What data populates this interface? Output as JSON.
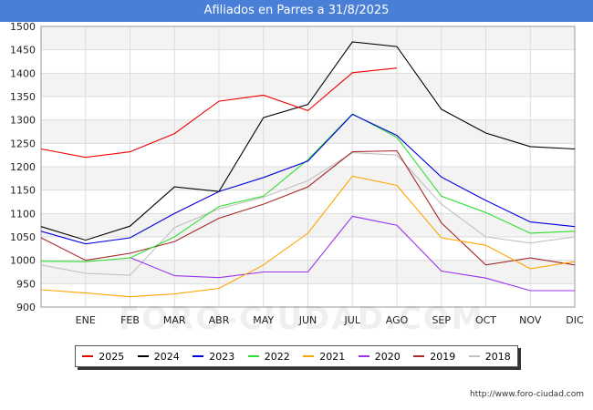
{
  "header": {
    "title": "Afiliados en Parres a 31/8/2025"
  },
  "footer": {
    "url": "http://www.foro-ciudad.com",
    "watermark": "FORO-CIUDAD.COM"
  },
  "chart_data": {
    "type": "line",
    "title": "Afiliados en Parres a 31/8/2025",
    "xlabel": "",
    "ylabel": "",
    "categories": [
      "",
      "ENE",
      "FEB",
      "MAR",
      "ABR",
      "MAY",
      "JUN",
      "JUL",
      "AGO",
      "SEP",
      "OCT",
      "NOV",
      "DIC"
    ],
    "ylim": [
      900,
      1500
    ],
    "yticks": [
      900,
      950,
      1000,
      1050,
      1100,
      1150,
      1200,
      1250,
      1300,
      1350,
      1400,
      1450,
      1500
    ],
    "grid": true,
    "legend_position": "bottom",
    "series": [
      {
        "name": "2018",
        "color": "#c0c0c0",
        "values": [
          990,
          972,
          968,
          1070,
          1110,
          1135,
          1170,
          1230,
          1225,
          1120,
          1050,
          1037,
          1050
        ]
      },
      {
        "name": "2019",
        "color": "#a52a2a",
        "values": [
          1048,
          1000,
          1015,
          1040,
          1090,
          1120,
          1157,
          1232,
          1234,
          1080,
          990,
          1005,
          990
        ]
      },
      {
        "name": "2020",
        "color": "#9933ee",
        "values": [
          null,
          null,
          1006,
          967,
          963,
          975,
          975,
          1094,
          1075,
          977,
          962,
          935,
          935
        ]
      },
      {
        "name": "2021",
        "color": "#ffa500",
        "values": [
          937,
          930,
          922,
          928,
          940,
          990,
          1058,
          1180,
          1160,
          1048,
          1032,
          982,
          997
        ]
      },
      {
        "name": "2022",
        "color": "#33dd33",
        "values": [
          998,
          997,
          1005,
          1050,
          1115,
          1137,
          1215,
          1313,
          1263,
          1137,
          1102,
          1058,
          1062
        ]
      },
      {
        "name": "2023",
        "color": "#0000dd",
        "values": [
          1062,
          1035,
          1048,
          1100,
          1147,
          1177,
          1212,
          1312,
          1267,
          1178,
          1128,
          1082,
          1072
        ]
      },
      {
        "name": "2024",
        "color": "#000000",
        "values": [
          1072,
          1043,
          1073,
          1157,
          1147,
          1305,
          1333,
          1467,
          1457,
          1323,
          1272,
          1243,
          1238
        ]
      },
      {
        "name": "2025",
        "color": "#ee0000",
        "values": [
          1238,
          1220,
          1232,
          1271,
          1340,
          1353,
          1320,
          1401,
          1411,
          null,
          null,
          null,
          null
        ]
      }
    ],
    "legend_order": [
      "2025",
      "2024",
      "2023",
      "2022",
      "2021",
      "2020",
      "2019",
      "2018"
    ]
  }
}
